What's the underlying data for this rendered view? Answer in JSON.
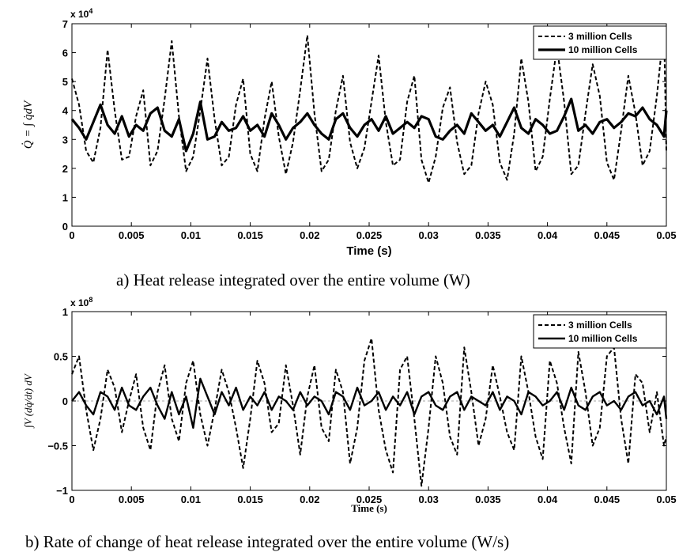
{
  "chart_data": [
    {
      "type": "line",
      "xlabel": "Time (s)",
      "ylabel": "Q̇ = ∫ q̇dV",
      "exponent_label": "x 10^4",
      "y_multiplier": 10000,
      "xlim": [
        0,
        0.05
      ],
      "ylim": [
        0,
        7
      ],
      "x_ticks": [
        "0",
        "0.005",
        "0.01",
        "0.015",
        "0.02",
        "0.025",
        "0.03",
        "0.035",
        "0.04",
        "0.045",
        "0.05"
      ],
      "y_ticks": [
        "0",
        "1",
        "2",
        "3",
        "4",
        "5",
        "6",
        "7"
      ],
      "caption": "a) Heat release integrated over the entire volume (W)",
      "legend_position": "top-right",
      "series": [
        {
          "name": "3 million Cells",
          "style": "dashed",
          "x": [
            0,
            0.0006,
            0.0012,
            0.0018,
            0.0024,
            0.003,
            0.0036,
            0.0042,
            0.0048,
            0.0054,
            0.006,
            0.0066,
            0.0072,
            0.0078,
            0.0084,
            0.009,
            0.0096,
            0.0102,
            0.0108,
            0.0114,
            0.012,
            0.0126,
            0.0132,
            0.0138,
            0.0144,
            0.015,
            0.0156,
            0.0162,
            0.0168,
            0.0174,
            0.018,
            0.0186,
            0.0192,
            0.0198,
            0.0204,
            0.021,
            0.0216,
            0.0222,
            0.0228,
            0.0234,
            0.024,
            0.0246,
            0.0252,
            0.0258,
            0.0264,
            0.027,
            0.0276,
            0.0282,
            0.0288,
            0.0294,
            0.03,
            0.0306,
            0.0312,
            0.0318,
            0.0324,
            0.033,
            0.0336,
            0.0342,
            0.0348,
            0.0354,
            0.036,
            0.0366,
            0.0372,
            0.0378,
            0.0384,
            0.039,
            0.0396,
            0.0402,
            0.0408,
            0.0414,
            0.042,
            0.0426,
            0.0432,
            0.0438,
            0.0444,
            0.045,
            0.0456,
            0.0462,
            0.0468,
            0.0474,
            0.048,
            0.0486,
            0.0492,
            0.0498,
            0.05
          ],
          "values": [
            5.1,
            4.2,
            2.6,
            2.2,
            3.4,
            6.1,
            4.0,
            2.3,
            2.4,
            3.8,
            4.7,
            2.1,
            2.6,
            4.4,
            6.4,
            3.8,
            1.9,
            2.4,
            4.0,
            5.8,
            3.7,
            2.1,
            2.4,
            4.2,
            5.1,
            2.5,
            1.9,
            3.7,
            5.0,
            3.1,
            1.8,
            2.9,
            4.7,
            6.6,
            3.9,
            1.9,
            2.3,
            4.0,
            5.2,
            2.9,
            2.0,
            2.7,
            4.3,
            5.9,
            3.6,
            2.1,
            2.3,
            4.3,
            5.2,
            2.3,
            1.5,
            2.4,
            4.1,
            4.8,
            2.9,
            1.8,
            2.1,
            3.9,
            5.0,
            4.2,
            2.2,
            1.6,
            3.2,
            5.8,
            4.3,
            1.9,
            2.4,
            4.4,
            6.2,
            4.3,
            1.8,
            2.1,
            3.9,
            5.6,
            4.5,
            2.2,
            1.6,
            3.3,
            5.2,
            3.9,
            2.1,
            2.6,
            4.5,
            6.9,
            2.6
          ]
        },
        {
          "name": "10 million Cells",
          "style": "solid",
          "x": [
            0,
            0.0006,
            0.0012,
            0.0018,
            0.0024,
            0.003,
            0.0036,
            0.0042,
            0.0048,
            0.0054,
            0.006,
            0.0066,
            0.0072,
            0.0078,
            0.0084,
            0.009,
            0.0096,
            0.0102,
            0.0108,
            0.0114,
            0.012,
            0.0126,
            0.0132,
            0.0138,
            0.0144,
            0.015,
            0.0156,
            0.0162,
            0.0168,
            0.0174,
            0.018,
            0.0186,
            0.0192,
            0.0198,
            0.0204,
            0.021,
            0.0216,
            0.0222,
            0.0228,
            0.0234,
            0.024,
            0.0246,
            0.0252,
            0.0258,
            0.0264,
            0.027,
            0.0276,
            0.0282,
            0.0288,
            0.0294,
            0.03,
            0.0306,
            0.0312,
            0.0318,
            0.0324,
            0.033,
            0.0336,
            0.0342,
            0.0348,
            0.0354,
            0.036,
            0.0366,
            0.0372,
            0.0378,
            0.0384,
            0.039,
            0.0396,
            0.0402,
            0.0408,
            0.0414,
            0.042,
            0.0426,
            0.0432,
            0.0438,
            0.0444,
            0.045,
            0.0456,
            0.0462,
            0.0468,
            0.0474,
            0.048,
            0.0486,
            0.0492,
            0.0498,
            0.05
          ],
          "values": [
            3.7,
            3.4,
            3.0,
            3.6,
            4.2,
            3.5,
            3.2,
            3.8,
            3.1,
            3.5,
            3.3,
            3.9,
            4.1,
            3.3,
            3.1,
            3.7,
            2.6,
            3.2,
            4.3,
            3.0,
            3.1,
            3.6,
            3.3,
            3.4,
            3.8,
            3.3,
            3.5,
            3.1,
            3.9,
            3.5,
            3.0,
            3.4,
            3.6,
            3.9,
            3.5,
            3.2,
            3.0,
            3.7,
            3.9,
            3.4,
            3.1,
            3.5,
            3.7,
            3.3,
            3.8,
            3.2,
            3.4,
            3.6,
            3.4,
            3.8,
            3.7,
            3.1,
            3.0,
            3.3,
            3.5,
            3.2,
            3.9,
            3.6,
            3.3,
            3.5,
            3.1,
            3.6,
            4.1,
            3.4,
            3.2,
            3.7,
            3.5,
            3.2,
            3.3,
            3.8,
            4.4,
            3.3,
            3.5,
            3.2,
            3.6,
            3.7,
            3.4,
            3.6,
            3.9,
            3.8,
            4.1,
            3.7,
            3.5,
            3.1,
            4.0
          ]
        }
      ]
    },
    {
      "type": "line",
      "xlabel": "Time (s)",
      "ylabel": "∫V (dq̇/dt) dV",
      "exponent_label": "x 10^8",
      "y_multiplier": 100000000,
      "xlim": [
        0,
        0.05
      ],
      "ylim": [
        -1,
        1
      ],
      "x_ticks": [
        "0",
        "0.005",
        "0.01",
        "0.015",
        "0.02",
        "0.025",
        "0.03",
        "0.035",
        "0.04",
        "0.045",
        "0.05"
      ],
      "y_ticks": [
        "−1",
        "−0.5",
        "0",
        "0.5",
        "1"
      ],
      "caption": "b) Rate of change of heat release integrated over the entire volume (W/s)",
      "legend_position": "top-right",
      "series": [
        {
          "name": "3 million Cells",
          "style": "dashed",
          "x": [
            0,
            0.0006,
            0.0012,
            0.0018,
            0.0024,
            0.003,
            0.0036,
            0.0042,
            0.0048,
            0.0054,
            0.006,
            0.0066,
            0.0072,
            0.0078,
            0.0084,
            0.009,
            0.0096,
            0.0102,
            0.0108,
            0.0114,
            0.012,
            0.0126,
            0.0132,
            0.0138,
            0.0144,
            0.015,
            0.0156,
            0.0162,
            0.0168,
            0.0174,
            0.018,
            0.0186,
            0.0192,
            0.0198,
            0.0204,
            0.021,
            0.0216,
            0.0222,
            0.0228,
            0.0234,
            0.024,
            0.0246,
            0.0252,
            0.0258,
            0.0264,
            0.027,
            0.0276,
            0.0282,
            0.0288,
            0.0294,
            0.03,
            0.0306,
            0.0312,
            0.0318,
            0.0324,
            0.033,
            0.0336,
            0.0342,
            0.0348,
            0.0354,
            0.036,
            0.0366,
            0.0372,
            0.0378,
            0.0384,
            0.039,
            0.0396,
            0.0402,
            0.0408,
            0.0414,
            0.042,
            0.0426,
            0.0432,
            0.0438,
            0.0444,
            0.045,
            0.0456,
            0.0462,
            0.0468,
            0.0474,
            0.048,
            0.0486,
            0.0492,
            0.0498,
            0.05
          ],
          "values": [
            0.3,
            0.5,
            -0.1,
            -0.55,
            -0.2,
            0.35,
            0.15,
            -0.35,
            0.0,
            0.3,
            -0.3,
            -0.55,
            0.1,
            0.4,
            -0.2,
            -0.45,
            0.2,
            0.45,
            -0.15,
            -0.5,
            -0.1,
            0.35,
            0.1,
            -0.3,
            -0.75,
            -0.2,
            0.45,
            0.2,
            -0.35,
            -0.25,
            0.4,
            -0.05,
            -0.6,
            0.05,
            0.4,
            -0.3,
            -0.45,
            0.35,
            0.1,
            -0.7,
            -0.3,
            0.45,
            0.7,
            -0.1,
            -0.55,
            -0.8,
            0.35,
            0.5,
            -0.2,
            -0.95,
            -0.3,
            0.5,
            0.2,
            -0.4,
            -0.6,
            0.6,
            0.1,
            -0.5,
            -0.2,
            0.4,
            0.05,
            -0.35,
            -0.55,
            0.5,
            0.1,
            -0.4,
            -0.65,
            0.45,
            0.2,
            -0.3,
            -0.7,
            0.55,
            0.1,
            -0.5,
            -0.3,
            0.5,
            0.6,
            -0.2,
            -0.7,
            0.3,
            0.2,
            -0.35,
            0.1,
            -0.5,
            -0.4
          ]
        },
        {
          "name": "10 million Cells",
          "style": "solid",
          "x": [
            0,
            0.0006,
            0.0012,
            0.0018,
            0.0024,
            0.003,
            0.0036,
            0.0042,
            0.0048,
            0.0054,
            0.006,
            0.0066,
            0.0072,
            0.0078,
            0.0084,
            0.009,
            0.0096,
            0.0102,
            0.0108,
            0.0114,
            0.012,
            0.0126,
            0.0132,
            0.0138,
            0.0144,
            0.015,
            0.0156,
            0.0162,
            0.0168,
            0.0174,
            0.018,
            0.0186,
            0.0192,
            0.0198,
            0.0204,
            0.021,
            0.0216,
            0.0222,
            0.0228,
            0.0234,
            0.024,
            0.0246,
            0.0252,
            0.0258,
            0.0264,
            0.027,
            0.0276,
            0.0282,
            0.0288,
            0.0294,
            0.03,
            0.0306,
            0.0312,
            0.0318,
            0.0324,
            0.033,
            0.0336,
            0.0342,
            0.0348,
            0.0354,
            0.036,
            0.0366,
            0.0372,
            0.0378,
            0.0384,
            0.039,
            0.0396,
            0.0402,
            0.0408,
            0.0414,
            0.042,
            0.0426,
            0.0432,
            0.0438,
            0.0444,
            0.045,
            0.0456,
            0.0462,
            0.0468,
            0.0474,
            0.048,
            0.0486,
            0.0492,
            0.0498,
            0.05
          ],
          "values": [
            0.0,
            0.1,
            -0.05,
            -0.15,
            0.1,
            0.05,
            -0.1,
            0.15,
            -0.05,
            -0.1,
            0.05,
            0.15,
            -0.05,
            -0.2,
            0.1,
            -0.15,
            0.05,
            -0.3,
            0.25,
            0.05,
            -0.15,
            0.1,
            -0.05,
            0.15,
            -0.1,
            0.05,
            -0.05,
            0.1,
            -0.1,
            0.05,
            0.0,
            -0.1,
            0.1,
            -0.05,
            0.05,
            0.0,
            -0.15,
            0.1,
            0.05,
            -0.1,
            0.15,
            -0.05,
            0.0,
            0.1,
            -0.1,
            0.05,
            -0.05,
            0.1,
            -0.15,
            0.05,
            0.1,
            -0.05,
            -0.1,
            0.05,
            0.1,
            -0.1,
            0.05,
            0.0,
            -0.05,
            0.1,
            -0.1,
            0.05,
            0.0,
            -0.15,
            0.1,
            0.05,
            -0.05,
            0.0,
            0.1,
            -0.1,
            0.15,
            -0.05,
            -0.1,
            0.05,
            0.1,
            -0.05,
            0.0,
            -0.1,
            0.05,
            0.1,
            -0.05,
            0.0,
            -0.15,
            0.05,
            -0.2
          ]
        }
      ]
    }
  ]
}
